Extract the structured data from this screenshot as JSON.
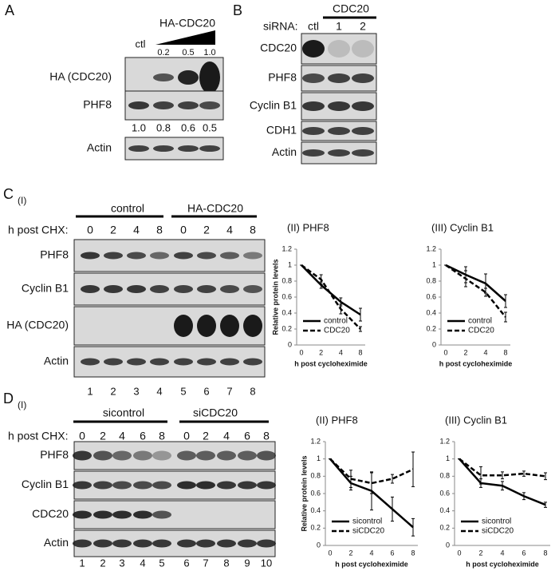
{
  "panels": {
    "A": {
      "letter": "A",
      "treatment": "HA-CDC20",
      "control": "ctl",
      "doses": [
        "0.2",
        "0.5",
        "1.0"
      ],
      "rows": [
        "HA (CDC20)",
        "PHF8",
        "Actin"
      ],
      "quantification": [
        "1.0",
        "0.8",
        "0.6",
        "0.5"
      ]
    },
    "B": {
      "letter": "B",
      "group": "CDC20",
      "sirna_label": "siRNA:",
      "lanes": [
        "ctl",
        "1",
        "2"
      ],
      "rows": [
        "CDC20",
        "PHF8",
        "Cyclin B1",
        "CDH1",
        "Actin"
      ]
    },
    "C": {
      "letter": "C",
      "sub": "(I)",
      "groups": [
        "control",
        "HA-CDC20"
      ],
      "time_label": "h post CHX:",
      "timepoints": [
        "0",
        "2",
        "4",
        "8",
        "0",
        "2",
        "4",
        "8"
      ],
      "rows": [
        "PHF8",
        "Cyclin B1",
        "HA (CDC20)",
        "Actin"
      ],
      "lane_numbers": [
        "1",
        "2",
        "3",
        "4",
        "5",
        "6",
        "7",
        "8"
      ]
    },
    "D": {
      "letter": "D",
      "sub": "(I)",
      "groups": [
        "sicontrol",
        "siCDC20"
      ],
      "time_label": "h post CHX:",
      "timepoints": [
        "0",
        "2",
        "4",
        "6",
        "8",
        "0",
        "2",
        "4",
        "6",
        "8"
      ],
      "rows": [
        "PHF8",
        "Cyclin B1",
        "CDC20",
        "Actin"
      ],
      "lane_numbers": [
        "1",
        "2",
        "3",
        "4",
        "5",
        "6",
        "7",
        "8",
        "9",
        "10"
      ]
    }
  },
  "chart_data": [
    {
      "type": "line",
      "title": "(II) PHF8",
      "ylabel": "Relative protein levels",
      "xlabel": "h post cycloheximide",
      "categories": [
        "0",
        "2",
        "4",
        "8"
      ],
      "ylim": [
        0,
        1.2
      ],
      "yticks": [
        0,
        0.2,
        0.4,
        0.6,
        0.8,
        1,
        1.2
      ],
      "legend": "lower-left",
      "series": [
        {
          "name": "control",
          "color": "#000000",
          "linestyle": "solid",
          "values": [
            1,
            0.75,
            0.54,
            0.38
          ],
          "errors": [
            0,
            0.04,
            0.05,
            0.08
          ]
        },
        {
          "name": "CDC20",
          "color": "#000000",
          "linestyle": "dashed",
          "values": [
            1,
            0.82,
            0.45,
            0.2
          ],
          "errors": [
            0,
            0.06,
            0.06,
            0.03
          ]
        }
      ]
    },
    {
      "type": "line",
      "title": "(III) Cyclin B1",
      "xlabel": "h post cycloheximide",
      "categories": [
        "0",
        "2",
        "4",
        "8"
      ],
      "ylim": [
        0,
        1.2
      ],
      "yticks": [
        0,
        0.2,
        0.4,
        0.6,
        0.8,
        1,
        1.2
      ],
      "legend": "lower-left",
      "series": [
        {
          "name": "control",
          "color": "#000000",
          "linestyle": "solid",
          "values": [
            1,
            0.88,
            0.77,
            0.55
          ],
          "errors": [
            0,
            0.1,
            0.12,
            0.08
          ]
        },
        {
          "name": "CDC20",
          "color": "#000000",
          "linestyle": "dashed",
          "values": [
            1,
            0.83,
            0.66,
            0.35
          ],
          "errors": [
            0,
            0.1,
            0.05,
            0.06
          ]
        }
      ]
    },
    {
      "type": "line",
      "title": "(II) PHF8",
      "ylabel": "Relative protein levels",
      "xlabel": "h post cycloheximide",
      "categories": [
        "0",
        "2",
        "4",
        "6",
        "8"
      ],
      "ylim": [
        0,
        1.2
      ],
      "yticks": [
        0,
        0.2,
        0.4,
        0.6,
        0.8,
        1,
        1.2
      ],
      "legend": "lower-left",
      "series": [
        {
          "name": "sicontrol",
          "color": "#000000",
          "linestyle": "solid",
          "values": [
            1,
            0.72,
            0.63,
            0.42,
            0.21
          ],
          "errors": [
            0,
            0.08,
            0.22,
            0.14,
            0.1
          ]
        },
        {
          "name": "siCDC20",
          "color": "#000000",
          "linestyle": "dashed",
          "values": [
            1,
            0.77,
            0.72,
            0.77,
            0.88
          ],
          "errors": [
            0,
            0.1,
            0.12,
            0.05,
            0.2
          ]
        }
      ]
    },
    {
      "type": "line",
      "title": "(III) Cyclin B1",
      "xlabel": "h post cycloheximide",
      "categories": [
        "0",
        "2",
        "4",
        "6",
        "8"
      ],
      "ylim": [
        0,
        1.2
      ],
      "yticks": [
        0,
        0.2,
        0.4,
        0.6,
        0.8,
        1,
        1.2
      ],
      "legend": "lower-left",
      "series": [
        {
          "name": "sicontrol",
          "color": "#000000",
          "linestyle": "solid",
          "values": [
            1,
            0.72,
            0.69,
            0.57,
            0.47
          ],
          "errors": [
            0,
            0.05,
            0.05,
            0.04,
            0.03
          ]
        },
        {
          "name": "siCDC20",
          "color": "#000000",
          "linestyle": "dashed",
          "values": [
            1,
            0.81,
            0.81,
            0.83,
            0.8
          ],
          "errors": [
            0,
            0.1,
            0.04,
            0.03,
            0.04
          ]
        }
      ]
    }
  ]
}
